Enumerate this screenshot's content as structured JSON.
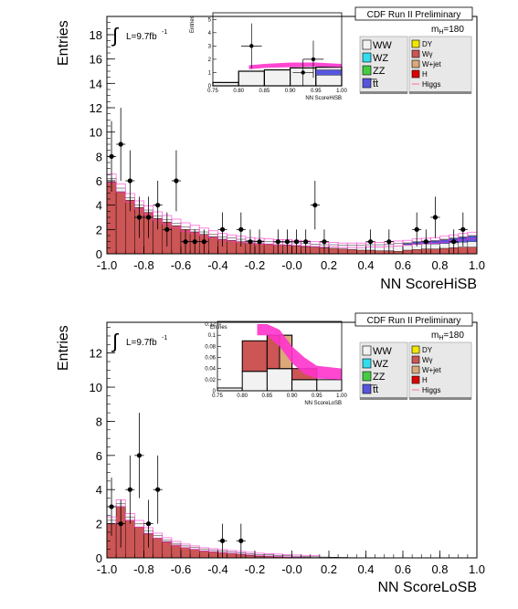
{
  "colors": {
    "WW": "#f2f2f2",
    "WZ": "#33ddee",
    "ZZ": "#44cc44",
    "tt": "#5555dd",
    "DY": "#f2e600",
    "Wgamma": "#cc5555",
    "Wjet": "#dba87a",
    "H": "#dd0000",
    "Higgs": "#ff66aa",
    "band": "#ff33cc",
    "data": "#000000"
  },
  "chart_data": [
    {
      "type": "bar",
      "name": "HiSB",
      "banner": "CDF Run II Preliminary",
      "mass_label": "m_H=180",
      "lumi_label": "L=9.7fb",
      "lumi_exp": "-1",
      "ylabel": "Entries",
      "xlabel": "NN ScoreHiSB",
      "xlim": [
        -1.0,
        1.0
      ],
      "ylim": [
        0,
        19.5
      ],
      "xticks": [
        "-1.0",
        "-0.8",
        "-0.6",
        "-0.4",
        "-0.2",
        "-0.0",
        "0.2",
        "0.4",
        "0.6",
        "0.8",
        "1.0"
      ],
      "yticks": [
        "0",
        "2",
        "4",
        "6",
        "8",
        "10",
        "12",
        "14",
        "16",
        "18"
      ],
      "ytick_values": [
        0,
        2,
        4,
        6,
        8,
        10,
        12,
        14,
        16,
        18
      ],
      "bin_low": [
        -1.0,
        -0.95,
        -0.9,
        -0.85,
        -0.8,
        -0.75,
        -0.7,
        -0.65,
        -0.6,
        -0.55,
        -0.5,
        -0.45,
        -0.4,
        -0.35,
        -0.3,
        -0.25,
        -0.2,
        -0.15,
        -0.1,
        -0.05,
        0.0,
        0.05,
        0.1,
        0.15,
        0.2,
        0.25,
        0.3,
        0.35,
        0.4,
        0.45,
        0.5,
        0.55,
        0.6,
        0.65,
        0.7,
        0.75,
        0.8,
        0.85,
        0.9,
        0.95
      ],
      "background_total": [
        6.2,
        5.4,
        4.6,
        4.0,
        3.6,
        3.1,
        2.8,
        2.5,
        2.2,
        2.0,
        1.8,
        1.6,
        1.4,
        1.3,
        1.2,
        1.1,
        1.05,
        1.0,
        0.95,
        0.95,
        0.9,
        0.85,
        0.8,
        0.75,
        0.75,
        0.7,
        0.7,
        0.7,
        0.75,
        0.75,
        0.8,
        0.85,
        0.9,
        1.0,
        1.05,
        1.1,
        1.2,
        1.3,
        1.4,
        1.5
      ],
      "wgamma_part": [
        5.9,
        5.1,
        4.4,
        3.8,
        3.4,
        2.9,
        2.6,
        2.3,
        2.0,
        1.8,
        1.6,
        1.4,
        1.2,
        1.1,
        1.0,
        0.9,
        0.85,
        0.8,
        0.75,
        0.7,
        0.65,
        0.6,
        0.55,
        0.5,
        0.45,
        0.4,
        0.35,
        0.3,
        0.3,
        0.25,
        0.25,
        0.2,
        0.2,
        0.2,
        0.2,
        0.15,
        0.15,
        0.15,
        0.15,
        0.1
      ],
      "tt_part": [
        0,
        0,
        0,
        0,
        0,
        0,
        0,
        0,
        0,
        0,
        0,
        0,
        0,
        0,
        0,
        0,
        0,
        0,
        0,
        0,
        0,
        0,
        0,
        0,
        0,
        0,
        0,
        0,
        0,
        0,
        0,
        0,
        0.1,
        0.15,
        0.2,
        0.25,
        0.3,
        0.35,
        0.4,
        0.45
      ],
      "band_halfwidth": 0.35,
      "data_points": [
        {
          "x": -0.975,
          "y": 8,
          "err": 2.9
        },
        {
          "x": -0.925,
          "y": 9,
          "err": 3.0
        },
        {
          "x": -0.875,
          "y": 6,
          "err": 2.5
        },
        {
          "x": -0.825,
          "y": 3,
          "err": 1.7
        },
        {
          "x": -0.775,
          "y": 3,
          "err": 1.7
        },
        {
          "x": -0.725,
          "y": 4,
          "err": 2.0
        },
        {
          "x": -0.675,
          "y": 2,
          "err": 1.4
        },
        {
          "x": -0.625,
          "y": 6,
          "err": 2.5
        },
        {
          "x": -0.575,
          "y": 1,
          "err": 1.0
        },
        {
          "x": -0.525,
          "y": 1,
          "err": 1.0
        },
        {
          "x": -0.475,
          "y": 1,
          "err": 1.0
        },
        {
          "x": -0.375,
          "y": 2,
          "err": 1.4
        },
        {
          "x": -0.275,
          "y": 2,
          "err": 1.4
        },
        {
          "x": -0.225,
          "y": 1,
          "err": 1.0
        },
        {
          "x": -0.175,
          "y": 1,
          "err": 1.0
        },
        {
          "x": -0.075,
          "y": 1,
          "err": 1.0
        },
        {
          "x": -0.025,
          "y": 1,
          "err": 1.0
        },
        {
          "x": 0.025,
          "y": 1,
          "err": 1.0
        },
        {
          "x": 0.075,
          "y": 1,
          "err": 1.0
        },
        {
          "x": 0.125,
          "y": 4,
          "err": 2.0
        },
        {
          "x": 0.175,
          "y": 1,
          "err": 1.0
        },
        {
          "x": 0.425,
          "y": 1,
          "err": 1.0
        },
        {
          "x": 0.525,
          "y": 1,
          "err": 1.0
        },
        {
          "x": 0.675,
          "y": 2,
          "err": 1.4
        },
        {
          "x": 0.725,
          "y": 1,
          "err": 1.0
        },
        {
          "x": 0.775,
          "y": 3,
          "err": 1.7
        },
        {
          "x": 0.875,
          "y": 1,
          "err": 1.0
        },
        {
          "x": 0.925,
          "y": 2,
          "err": 1.4
        }
      ],
      "legend_left": [
        "WW",
        "WZ",
        "ZZ",
        "t̅t"
      ],
      "legend_right": [
        "DY",
        "Wγ",
        "W+jet",
        "H",
        "Higgs"
      ],
      "inset": {
        "ylabel": "Entries",
        "xlabel": "NN ScoreHiSB",
        "xlim": [
          0.75,
          1.0
        ],
        "ylim": [
          0,
          5.5
        ],
        "xticks": [
          "0.75",
          "0.80",
          "0.85",
          "0.90",
          "0.95",
          "1.00"
        ],
        "yticks": [
          "0",
          "1",
          "2",
          "3",
          "4",
          "5"
        ],
        "ytick_values": [
          0,
          1,
          2,
          3,
          4,
          5
        ],
        "bin_low": [
          0.75,
          0.8,
          0.85,
          0.9,
          0.95
        ],
        "bin_high": [
          0.8,
          0.85,
          0.9,
          0.95,
          1.0
        ],
        "ww": [
          0.0,
          0.7,
          0.7,
          0.9,
          0.9
        ],
        "tt": [
          0.0,
          0.0,
          0.0,
          0.0,
          0.4
        ],
        "total": [
          0.25,
          1.1,
          1.2,
          1.35,
          1.4
        ],
        "band_x": [
          0.82,
          0.85,
          0.9,
          0.95,
          1.0
        ],
        "band_lo": [
          1.25,
          1.35,
          1.4,
          1.45,
          1.4
        ],
        "band_hi": [
          1.55,
          1.65,
          1.75,
          1.75,
          1.65
        ],
        "data_points": [
          {
            "x": 0.825,
            "y": 3,
            "err": 1.7
          },
          {
            "x": 0.925,
            "y": 1,
            "err": 1.0
          },
          {
            "x": 0.945,
            "y": 2,
            "err": 1.4
          }
        ]
      }
    },
    {
      "type": "bar",
      "name": "LoSB",
      "banner": "CDF Run II Preliminary",
      "mass_label": "m_H=180",
      "lumi_label": "L=9.7fb",
      "lumi_exp": "-1",
      "ylabel": "Entries",
      "xlabel": "NN ScoreLoSB",
      "xlim": [
        -1.0,
        1.0
      ],
      "ylim": [
        0,
        13.8
      ],
      "xticks": [
        "-1.0",
        "-0.8",
        "-0.6",
        "-0.4",
        "-0.2",
        "-0.0",
        "0.2",
        "0.4",
        "0.6",
        "0.8",
        "1.0"
      ],
      "yticks": [
        "0",
        "2",
        "4",
        "6",
        "8",
        "10",
        "12"
      ],
      "ytick_values": [
        0,
        2,
        4,
        6,
        8,
        10,
        12
      ],
      "bin_low": [
        -1.0,
        -0.95,
        -0.9,
        -0.85,
        -0.8,
        -0.75,
        -0.7,
        -0.65,
        -0.6,
        -0.55,
        -0.5,
        -0.45,
        -0.4,
        -0.35,
        -0.3,
        -0.25,
        -0.2,
        -0.15,
        -0.1,
        -0.05,
        0.0,
        0.05,
        0.1,
        0.15,
        0.2,
        0.25,
        0.3,
        0.35,
        0.4,
        0.45,
        0.5,
        0.55,
        0.6,
        0.65,
        0.7,
        0.75,
        0.8,
        0.85,
        0.9,
        0.95
      ],
      "background_total": [
        2.2,
        3.2,
        2.4,
        2.0,
        1.6,
        1.3,
        1.05,
        0.85,
        0.7,
        0.6,
        0.5,
        0.45,
        0.4,
        0.35,
        0.3,
        0.25,
        0.2,
        0.18,
        0.15,
        0.12,
        0.1,
        0.08,
        0.06,
        0.05,
        0.04,
        0.03,
        0.02,
        0.01,
        0.01,
        0.01,
        0,
        0,
        0,
        0,
        0,
        0,
        0,
        0,
        0,
        0
      ],
      "wgamma_part": [
        2.0,
        3.0,
        2.2,
        1.8,
        1.4,
        1.15,
        0.95,
        0.75,
        0.6,
        0.5,
        0.4,
        0.35,
        0.3,
        0.25,
        0.2,
        0.15,
        0.1,
        0.08,
        0.06,
        0.05,
        0.04,
        0.03,
        0.02,
        0.01,
        0.01,
        0,
        0,
        0,
        0,
        0,
        0,
        0,
        0,
        0,
        0,
        0,
        0,
        0,
        0,
        0
      ],
      "tt_part": [
        0,
        0,
        0,
        0,
        0,
        0,
        0,
        0,
        0,
        0,
        0,
        0,
        0,
        0,
        0,
        0,
        0,
        0,
        0,
        0,
        0,
        0,
        0,
        0,
        0,
        0,
        0,
        0,
        0,
        0,
        0,
        0,
        0,
        0,
        0,
        0,
        0,
        0,
        0,
        0
      ],
      "band_halfwidth": 0.2,
      "data_points": [
        {
          "x": -0.975,
          "y": 3,
          "err": 1.7
        },
        {
          "x": -0.925,
          "y": 2,
          "err": 1.4
        },
        {
          "x": -0.875,
          "y": 4,
          "err": 2.0
        },
        {
          "x": -0.825,
          "y": 6,
          "err": 2.5
        },
        {
          "x": -0.775,
          "y": 2,
          "err": 1.4
        },
        {
          "x": -0.725,
          "y": 4,
          "err": 2.0
        },
        {
          "x": -0.375,
          "y": 1,
          "err": 1.0
        },
        {
          "x": -0.275,
          "y": 1,
          "err": 1.0
        }
      ],
      "legend_left": [
        "WW",
        "WZ",
        "ZZ",
        "t̅t"
      ],
      "legend_right": [
        "DY",
        "Wγ",
        "W+jet",
        "H",
        "Higgs"
      ],
      "inset": {
        "ylabel": "Entries",
        "xlabel": "NN ScoreLoSB",
        "xlim": [
          0.75,
          1.0
        ],
        "ylim": [
          0,
          0.125
        ],
        "xticks": [
          "0.75",
          "0.80",
          "0.85",
          "0.90",
          "0.95",
          "1.00"
        ],
        "yticks": [
          "0",
          "0.02",
          "0.04",
          "0.06",
          "0.08",
          "0.1",
          "0.12"
        ],
        "ytick_values": [
          0,
          0.02,
          0.04,
          0.06,
          0.08,
          0.1,
          0.12
        ],
        "bin_low": [
          0.75,
          0.8,
          0.85,
          0.9,
          0.95
        ],
        "bin_high": [
          0.8,
          0.85,
          0.9,
          0.95,
          1.0
        ],
        "ww": [
          0.0,
          0.03,
          0.035,
          0.02,
          0.02
        ],
        "wgamma": [
          0.0,
          0.04,
          0.06,
          0.0,
          0.0
        ],
        "wjet": [
          0.0,
          0.0,
          0.0,
          0.0,
          0.0
        ],
        "total": [
          0.005,
          0.035,
          0.1,
          0.04,
          0.02
        ],
        "stack_ww": [
          0.005,
          0.035,
          0.04,
          0.02,
          0.02
        ],
        "stack_wg": [
          0.0,
          0.055,
          0.05,
          0.02,
          0.0
        ],
        "stack_wj": [
          0.0,
          0.0,
          0.01,
          0.0,
          0.0
        ],
        "band_x": [
          0.83,
          0.85,
          0.875,
          0.9,
          0.925,
          0.95,
          1.0
        ],
        "band_lo": [
          0.1,
          0.1,
          0.08,
          0.05,
          0.03,
          0.022,
          0.02
        ],
        "band_hi": [
          0.12,
          0.12,
          0.11,
          0.08,
          0.06,
          0.045,
          0.04
        ]
      }
    }
  ]
}
